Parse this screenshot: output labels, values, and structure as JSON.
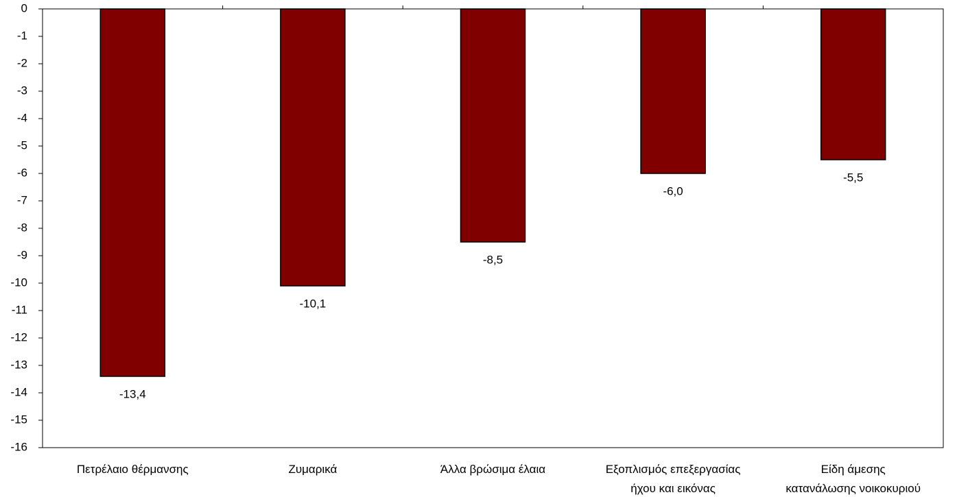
{
  "chart_data": {
    "type": "bar",
    "categories": [
      "Πετρέλαιο θέρμανσης",
      "Ζυμαρικά",
      "Άλλα βρώσιμα έλαια",
      "Εξοπλισμός επεξεργασίας\nήχου και εικόνας",
      "Είδη άμεσης\nκατανάλωσης νοικοκυριού"
    ],
    "values": [
      -13.4,
      -10.1,
      -8.5,
      -6.0,
      -5.5
    ],
    "value_labels": [
      "-13,4",
      "-10,1",
      "-8,5",
      "-6,0",
      "-5,5"
    ],
    "color": "#800000",
    "ylim": [
      -16,
      0
    ],
    "yticks": [
      0,
      -1,
      -2,
      -3,
      -4,
      -5,
      -6,
      -7,
      -8,
      -9,
      -10,
      -11,
      -12,
      -13,
      -14,
      -15,
      -16
    ]
  }
}
